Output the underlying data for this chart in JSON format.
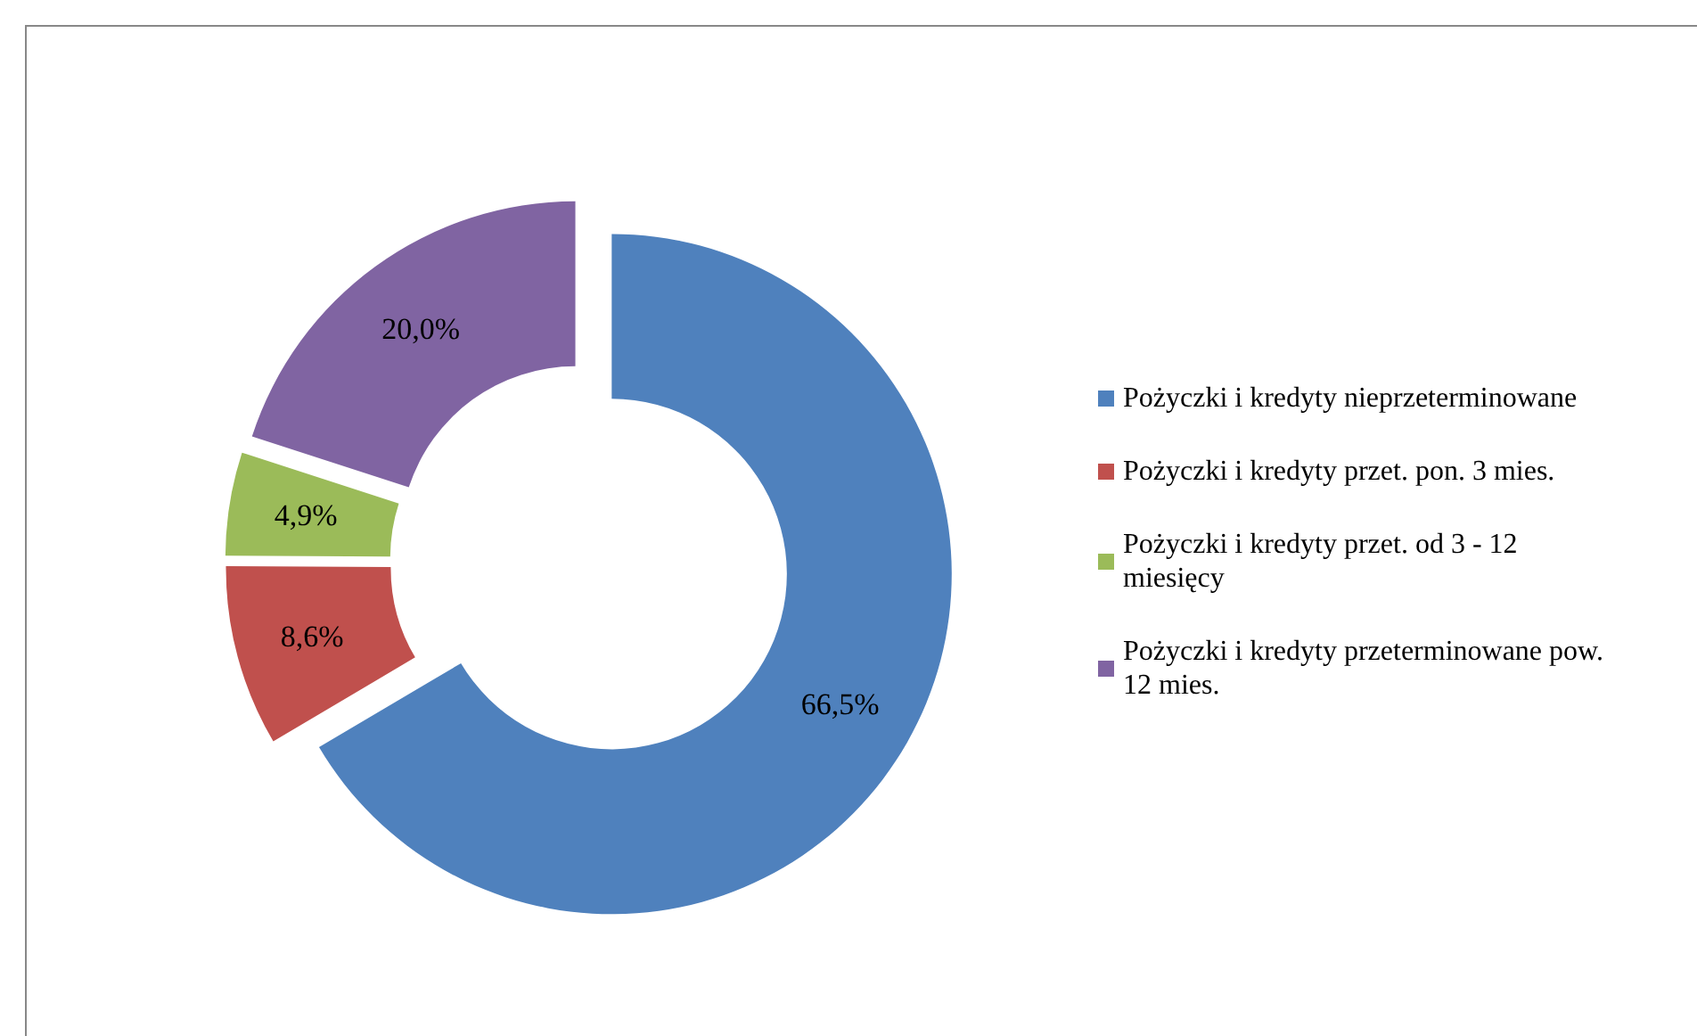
{
  "chart_data": {
    "type": "donut",
    "categories": [
      "Pożyczki i kredyty nieprzeterminowane",
      "Pożyczki i kredyty przet. pon. 3 mies.",
      "Pożyczki i kredyty przet. od 3 - 12 miesięcy",
      "Pożyczki i kredyty przeterminowane pow. 12 mies."
    ],
    "values": [
      66.5,
      8.6,
      4.9,
      20.0
    ],
    "value_labels": [
      "66,5%",
      "8,6%",
      "4,9%",
      "20,0%"
    ],
    "colors": [
      "#4f81bd",
      "#c0504d",
      "#9bbb59",
      "#8064a2"
    ],
    "legend": "right"
  }
}
